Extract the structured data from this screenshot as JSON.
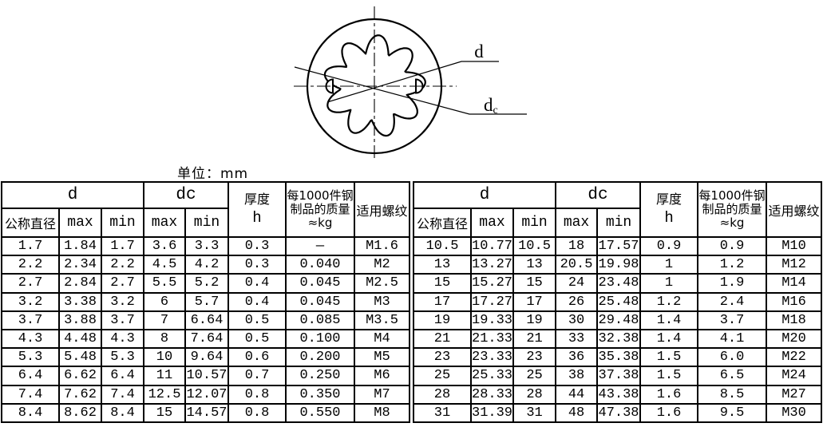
{
  "figure": {
    "d_label": "d",
    "dc_label_main": "d",
    "dc_label_sub": "c"
  },
  "unit_label": "单位：mm",
  "headers": {
    "d": "d",
    "dc": "dc",
    "nominal": "公称直径",
    "max": "max",
    "min": "min",
    "thickness_line1": "厚度",
    "thickness_line2": "h",
    "mass_line1": "每1000件钢",
    "mass_line2": "制品的质量",
    "mass_line3": "≈kg",
    "thread": "适用螺纹"
  },
  "left_table": {
    "rows": [
      [
        "1.7",
        "1.84",
        "1.7",
        "3.6",
        "3.3",
        "0.3",
        "—",
        "M1.6"
      ],
      [
        "2.2",
        "2.34",
        "2.2",
        "4.5",
        "4.2",
        "0.3",
        "0.040",
        "M2"
      ],
      [
        "2.7",
        "2.84",
        "2.7",
        "5.5",
        "5.2",
        "0.4",
        "0.045",
        "M2.5"
      ],
      [
        "3.2",
        "3.38",
        "3.2",
        "6",
        "5.7",
        "0.4",
        "0.045",
        "M3"
      ],
      [
        "3.7",
        "3.88",
        "3.7",
        "7",
        "6.64",
        "0.5",
        "0.085",
        "M3.5"
      ],
      [
        "4.3",
        "4.48",
        "4.3",
        "8",
        "7.64",
        "0.5",
        "0.100",
        "M4"
      ],
      [
        "5.3",
        "5.48",
        "5.3",
        "10",
        "9.64",
        "0.6",
        "0.200",
        "M5"
      ],
      [
        "6.4",
        "6.62",
        "6.4",
        "11",
        "10.57",
        "0.7",
        "0.250",
        "M6"
      ],
      [
        "7.4",
        "7.62",
        "7.4",
        "12.5",
        "12.07",
        "0.8",
        "0.350",
        "M7"
      ],
      [
        "8.4",
        "8.62",
        "8.4",
        "15",
        "14.57",
        "0.8",
        "0.550",
        "M8"
      ]
    ]
  },
  "right_table": {
    "rows": [
      [
        "10.5",
        "10.77",
        "10.5",
        "18",
        "17.57",
        "0.9",
        "0.9",
        "M10"
      ],
      [
        "13",
        "13.27",
        "13",
        "20.5",
        "19.98",
        "1",
        "1.2",
        "M12"
      ],
      [
        "15",
        "15.27",
        "15",
        "24",
        "23.48",
        "1",
        "1.9",
        "M14"
      ],
      [
        "17",
        "17.27",
        "17",
        "26",
        "25.48",
        "1.2",
        "2.4",
        "M16"
      ],
      [
        "19",
        "19.33",
        "19",
        "30",
        "29.48",
        "1.4",
        "3.7",
        "M18"
      ],
      [
        "21",
        "21.33",
        "21",
        "33",
        "32.38",
        "1.4",
        "4.1",
        "M20"
      ],
      [
        "23",
        "23.33",
        "23",
        "36",
        "35.38",
        "1.5",
        "6.0",
        "M22"
      ],
      [
        "25",
        "25.33",
        "25",
        "38",
        "37.38",
        "1.5",
        "6.5",
        "M24"
      ],
      [
        "28",
        "28.33",
        "28",
        "44",
        "43.38",
        "1.6",
        "8.5",
        "M27"
      ],
      [
        "31",
        "31.39",
        "31",
        "48",
        "47.38",
        "1.6",
        "9.5",
        "M30"
      ]
    ]
  },
  "colors": {
    "line": "#000000",
    "background": "#ffffff"
  }
}
